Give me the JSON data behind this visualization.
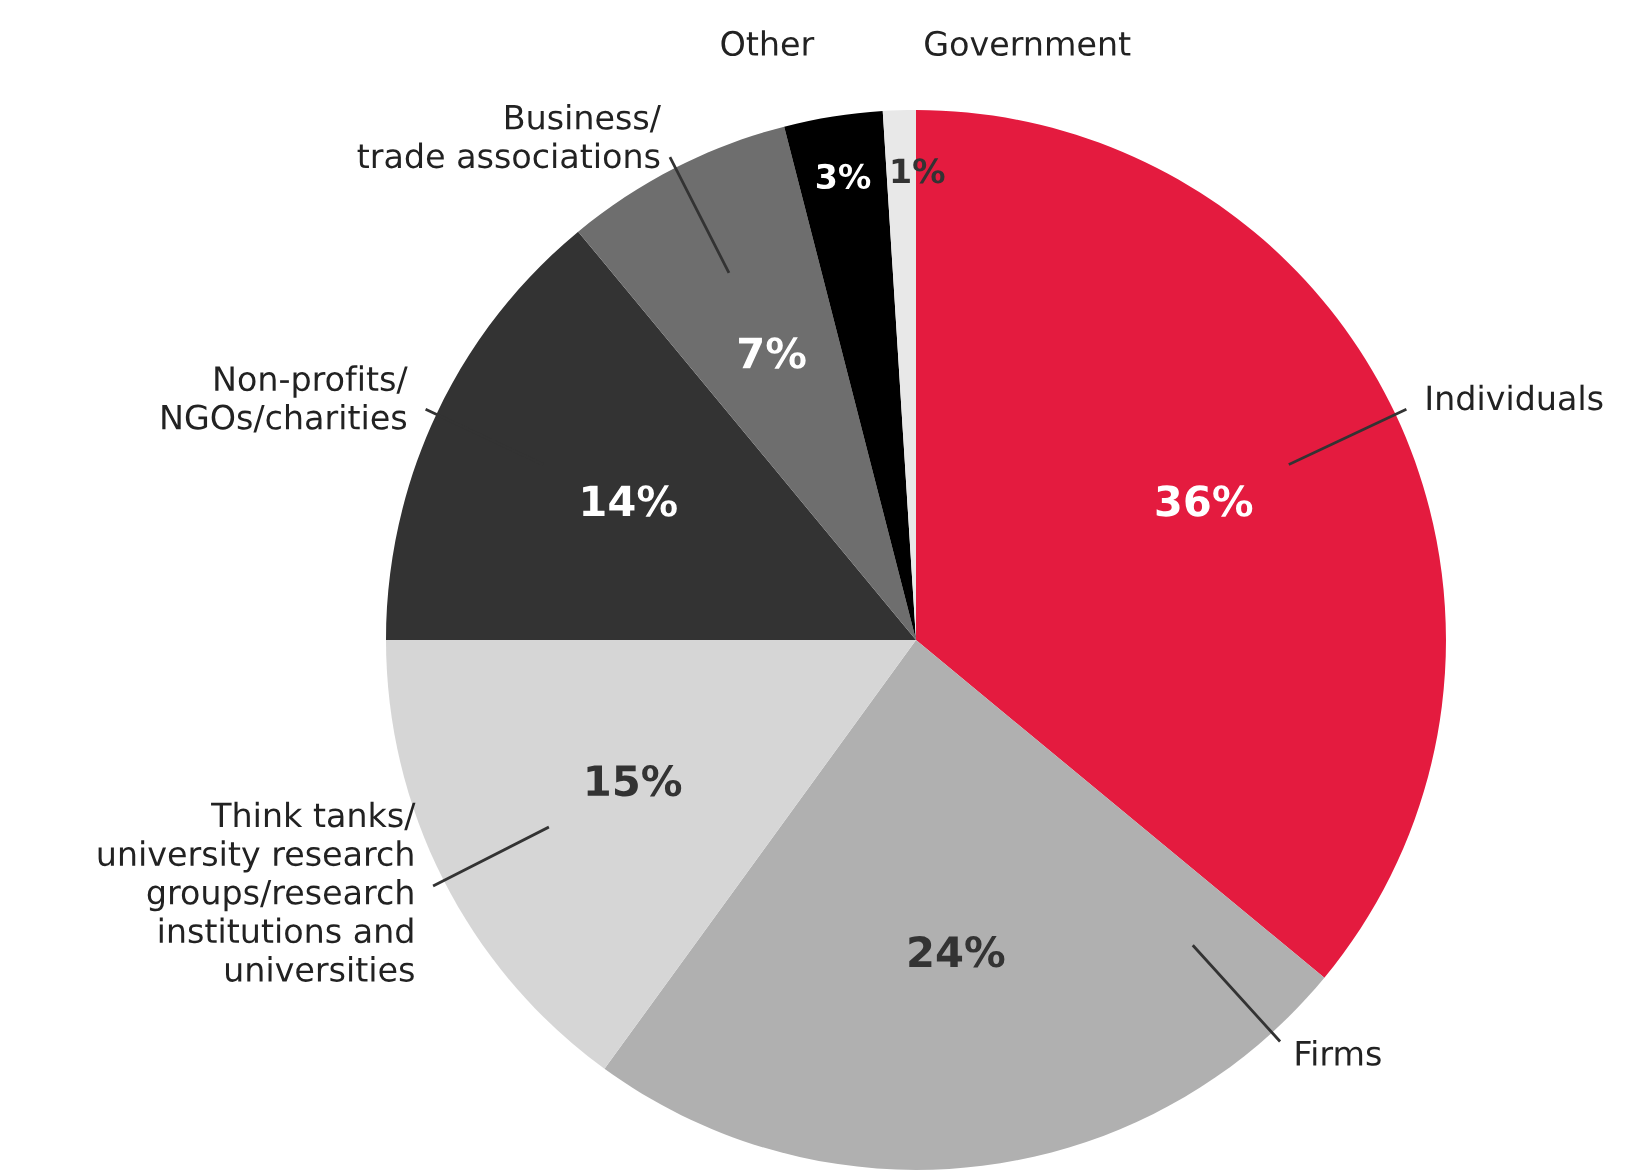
{
  "chart_data": {
    "type": "pie",
    "categories": [
      "Individuals",
      "Firms",
      "Think tanks/\nuniversity research\ngroups/research\ninstitutions and\nuniversities",
      "Non-profits/\nNGOs/charities",
      "Business/\ntrade associations",
      "Other",
      "Government"
    ],
    "values": [
      36,
      24,
      15,
      14,
      7,
      3,
      1
    ],
    "value_labels": [
      "36%",
      "24%",
      "15%",
      "14%",
      "7%",
      "3%",
      "1%"
    ],
    "colors": [
      "#e41b3f",
      "#b0b0b0",
      "#d6d6d6",
      "#333333",
      "#6e6e6e",
      "#000000",
      "#e8e8e8"
    ],
    "legend": false
  }
}
